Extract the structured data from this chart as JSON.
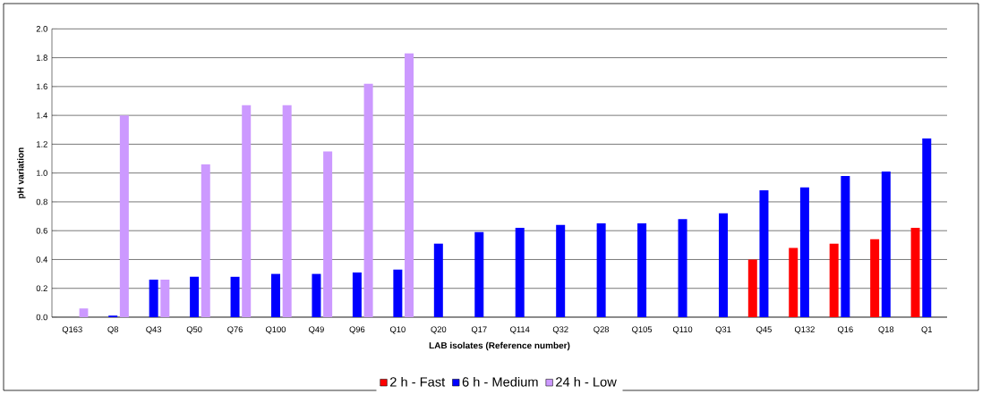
{
  "chart_data": {
    "type": "bar",
    "xlabel": "LAB isolates (Reference number)",
    "ylabel": "pH variation",
    "categories": [
      "Q163",
      "Q8",
      "Q43",
      "Q50",
      "Q76",
      "Q100",
      "Q49",
      "Q96",
      "Q10",
      "Q20",
      "Q17",
      "Q114",
      "Q32",
      "Q28",
      "Q105",
      "Q110",
      "Q31",
      "Q45",
      "Q132",
      "Q16",
      "Q18",
      "Q1"
    ],
    "series": [
      {
        "name": "2 h - Fast",
        "color": "#ff0000",
        "values": [
          null,
          null,
          null,
          null,
          null,
          null,
          null,
          null,
          null,
          null,
          null,
          null,
          null,
          null,
          null,
          null,
          null,
          0.4,
          0.48,
          0.51,
          0.54,
          0.62
        ]
      },
      {
        "name": "6 h - Medium",
        "color": "#0000ff",
        "values": [
          null,
          0.01,
          0.26,
          0.28,
          0.28,
          0.3,
          0.3,
          0.31,
          0.33,
          0.51,
          0.59,
          0.62,
          0.64,
          0.65,
          0.65,
          0.68,
          0.72,
          0.88,
          0.9,
          0.98,
          1.01,
          1.24
        ]
      },
      {
        "name": "24 h - Low",
        "color": "#cc99ff",
        "values": [
          0.06,
          1.4,
          0.26,
          1.06,
          1.47,
          1.47,
          1.15,
          1.62,
          1.83,
          null,
          null,
          null,
          null,
          null,
          null,
          null,
          null,
          null,
          null,
          null,
          null,
          null
        ]
      }
    ],
    "ylim": [
      0,
      2.0
    ],
    "yticks": [
      {
        "value": 0,
        "label": "0.0"
      },
      {
        "value": 0.2,
        "label": "0.2"
      },
      {
        "value": 0.4,
        "label": "0.4"
      },
      {
        "value": 0.6,
        "label": "0.6"
      },
      {
        "value": 0.8,
        "label": "0.8"
      },
      {
        "value": 1.0,
        "label": "1.0"
      },
      {
        "value": 1.2,
        "label": "1.2"
      },
      {
        "value": 1.4,
        "label": "1.4"
      },
      {
        "value": 1.6,
        "label": "1.6"
      },
      {
        "value": 1.8,
        "label": "1.8"
      },
      {
        "value": 2.0,
        "label": "2.0"
      }
    ],
    "grid": "y",
    "legend": "bottom"
  }
}
